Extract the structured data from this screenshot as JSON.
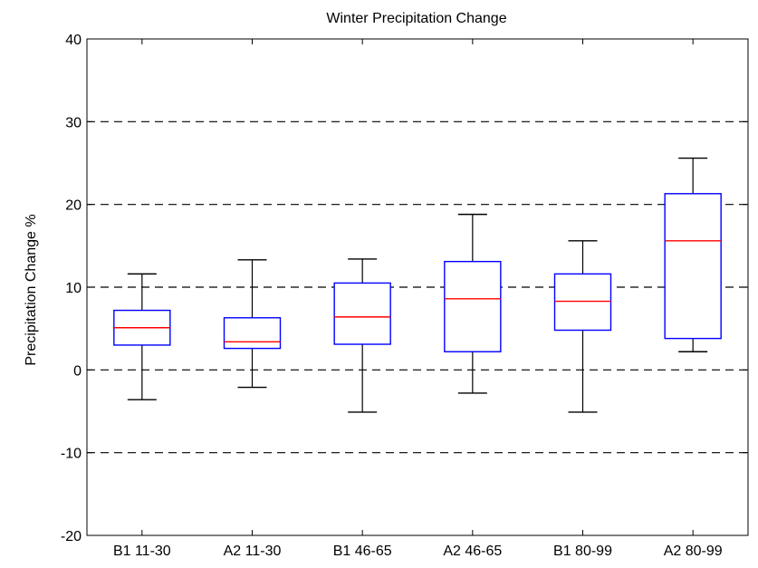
{
  "chart_data": {
    "type": "boxplot",
    "title": "Winter Precipitation Change",
    "xlabel": "",
    "ylabel": "Precipitation Change %",
    "ylim": [
      -20,
      40
    ],
    "yticks": [
      -20,
      -10,
      0,
      10,
      20,
      30,
      40
    ],
    "grid": "dashed-horizontal",
    "gridlines_at": [
      -10,
      0,
      10,
      20,
      30
    ],
    "categories": [
      "B1 11-30",
      "A2 11-30",
      "B1 46-65",
      "A2 46-65",
      "B1 80-99",
      "A2 80-99"
    ],
    "boxes": [
      {
        "whisker_low": -3.6,
        "q1": 3.0,
        "median": 5.1,
        "q3": 7.2,
        "whisker_high": 11.6
      },
      {
        "whisker_low": -2.1,
        "q1": 2.6,
        "median": 3.4,
        "q3": 6.3,
        "whisker_high": 13.3
      },
      {
        "whisker_low": -5.1,
        "q1": 3.1,
        "median": 6.4,
        "q3": 10.5,
        "whisker_high": 13.4
      },
      {
        "whisker_low": -2.8,
        "q1": 2.2,
        "median": 8.6,
        "q3": 13.1,
        "whisker_high": 18.8
      },
      {
        "whisker_low": -5.1,
        "q1": 4.8,
        "median": 8.3,
        "q3": 11.6,
        "whisker_high": 15.6
      },
      {
        "whisker_low": 2.2,
        "q1": 3.8,
        "median": 15.6,
        "q3": 21.3,
        "whisker_high": 25.6
      }
    ],
    "colors": {
      "box": "#0000ff",
      "median": "#ff0000",
      "whisker": "#000000",
      "grid": "#000000"
    }
  }
}
